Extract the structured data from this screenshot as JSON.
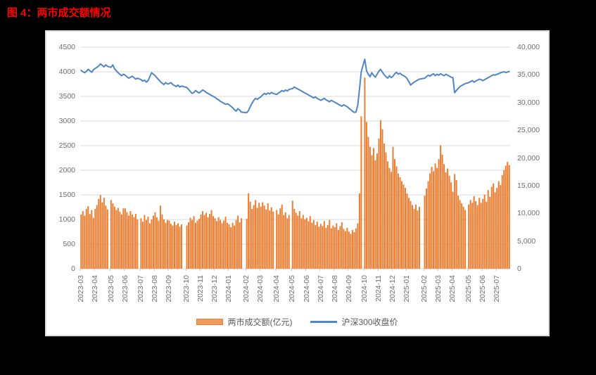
{
  "title": "图 4：两市成交额情况",
  "colors": {
    "title": "#FF0000",
    "bar": "#ED7D31",
    "line": "#4F87C5",
    "grid": "#D9D9D9",
    "axis": "#C6C6C6",
    "tick_text": "#6E6E6E",
    "legend_text": "#595959",
    "page_background": "#000000",
    "panel_background": "#FFFFFF"
  },
  "legend": {
    "turnover_label": "两市成交额(亿元)",
    "csi300_label": "沪深300收盘价"
  },
  "left_axis": {
    "min": 0,
    "max": 4500,
    "step": 500,
    "ticks": [
      "4500",
      "4000",
      "3500",
      "3000",
      "2500",
      "2000",
      "1500",
      "1000",
      "500",
      "0"
    ]
  },
  "right_axis": {
    "min": 0,
    "max": 40000,
    "step": 5000,
    "ticks": [
      "40,000",
      "35,000",
      "30,000",
      "25,000",
      "20,000",
      "15,000",
      "10,000",
      "5,000",
      "0"
    ]
  },
  "chart_data": {
    "type": "combo",
    "title": "图 4：两市成交额情况",
    "grid": true,
    "legend_position": "bottom",
    "series_meta": [
      {
        "name": "两市成交额(亿元)",
        "type": "bar",
        "axis": "right",
        "color": "#ED7D31",
        "axis_range": [
          0,
          40000
        ]
      },
      {
        "name": "沪深300收盘价",
        "type": "line",
        "axis": "left",
        "color": "#4F87C5",
        "axis_range": [
          0,
          4500
        ]
      }
    ],
    "x_tick_labels": [
      "2023-03",
      "2023-04",
      "2023-05",
      "2023-06",
      "2023-07",
      "2023-08",
      "2023-09",
      "2023-10",
      "2023-11",
      "2023-12",
      "2024-01",
      "2024-02",
      "2024-03",
      "2024-04",
      "2024-05",
      "2024-06",
      "2024-07",
      "2024-08",
      "2024-09",
      "2024-10",
      "2024-11",
      "2024-12",
      "2025-01",
      "2025-02",
      "2025-03",
      "2025-04",
      "2025-05",
      "2025-06",
      "2025-07"
    ],
    "months": [
      {
        "label": "2023-03",
        "g": 0,
        "t": [
          9800,
          10400,
          9600,
          10800,
          11300,
          9900,
          10600,
          9200
        ],
        "c": [
          4030,
          4000,
          3980,
          4010,
          4050,
          4020,
          3990,
          4040
        ]
      },
      {
        "label": "2023-04",
        "g": 1,
        "t": [
          10800,
          11500,
          12600,
          13300,
          12000,
          12800,
          11400,
          10700
        ],
        "c": [
          4070,
          4090,
          4120,
          4160,
          4130,
          4100,
          4140,
          4110
        ]
      },
      {
        "label": "2023-05",
        "g": 0,
        "t": [
          12400,
          11800,
          11200,
          10600,
          11000,
          10300,
          9800,
          10900
        ],
        "c": [
          4090,
          4140,
          4060,
          4020,
          3980,
          3950,
          3920,
          3950
        ]
      },
      {
        "label": "2023-06",
        "g": 1,
        "t": [
          10900,
          10200,
          9600,
          10400,
          9800,
          9300,
          9900,
          8900
        ],
        "c": [
          3930,
          3900,
          3870,
          3890,
          3910,
          3880,
          3850,
          3870
        ]
      },
      {
        "label": "2023-07",
        "g": 0,
        "t": [
          9100,
          8500,
          9700,
          8800,
          9400,
          8200,
          8900,
          9600
        ],
        "c": [
          3840,
          3810,
          3830,
          3790,
          3820,
          3900,
          3980,
          3950
        ]
      },
      {
        "label": "2023-08",
        "g": 0,
        "t": [
          10200,
          9300,
          8700,
          11400,
          9800,
          8900,
          8300,
          8800
        ],
        "c": [
          3920,
          3880,
          3840,
          3800,
          3770,
          3740,
          3780,
          3750
        ]
      },
      {
        "label": "2023-09",
        "g": 2,
        "t": [
          8700,
          8100,
          7800,
          8500,
          7900,
          8200,
          7600,
          8000
        ],
        "c": [
          3760,
          3780,
          3740,
          3720,
          3700,
          3730,
          3690,
          3710
        ]
      },
      {
        "label": "2023-10",
        "g": 0,
        "t": [
          7800,
          8400,
          9200,
          8800,
          9500,
          8300,
          8700,
          9000
        ],
        "c": [
          3680,
          3640,
          3600,
          3560,
          3580,
          3620,
          3590,
          3570
        ]
      },
      {
        "label": "2023-11",
        "g": 0,
        "t": [
          9800,
          10400,
          9700,
          10100,
          9300,
          9900,
          10600,
          9500
        ],
        "c": [
          3600,
          3630,
          3610,
          3580,
          3560,
          3540,
          3520,
          3500
        ]
      },
      {
        "label": "2023-12",
        "g": 0,
        "t": [
          9100,
          8600,
          9300,
          8800,
          8200,
          8700,
          9400,
          8300
        ],
        "c": [
          3480,
          3450,
          3430,
          3400,
          3380,
          3360,
          3340,
          3350
        ]
      },
      {
        "label": "2024-01",
        "g": 2,
        "t": [
          8000,
          7500,
          8300,
          7800,
          8800,
          9600,
          8400,
          9100
        ],
        "c": [
          3330,
          3300,
          3270,
          3230,
          3200,
          3250,
          3220,
          3180
        ]
      },
      {
        "label": "2024-02",
        "g": 0,
        "t": [
          9000,
          13600,
          12100,
          10800,
          11500,
          12400,
          11000,
          11900
        ],
        "c": [
          3170,
          3210,
          3290,
          3360,
          3420,
          3460,
          3440,
          3470
        ]
      },
      {
        "label": "2024-03",
        "g": 1,
        "t": [
          11200,
          12000,
          11400,
          10700,
          11800,
          10500,
          11100,
          10300
        ],
        "c": [
          3490,
          3530,
          3560,
          3540,
          3570,
          3550,
          3580,
          3560
        ]
      },
      {
        "label": "2024-04",
        "g": 1,
        "t": [
          10600,
          9800,
          10900,
          11600,
          9700,
          10200,
          9100,
          9700
        ],
        "c": [
          3540,
          3570,
          3590,
          3620,
          3600,
          3630,
          3610,
          3640
        ]
      },
      {
        "label": "2024-05",
        "g": 0,
        "t": [
          12300,
          10800,
          10100,
          9600,
          10400,
          9100,
          9700,
          8900
        ],
        "c": [
          3660,
          3690,
          3670,
          3650,
          3630,
          3610,
          3590,
          3570
        ]
      },
      {
        "label": "2024-06",
        "g": 0,
        "t": [
          9200,
          8600,
          9500,
          8300,
          8800,
          7900,
          8500,
          7600
        ],
        "c": [
          3550,
          3530,
          3510,
          3490,
          3470,
          3490,
          3460,
          3440
        ]
      },
      {
        "label": "2024-07",
        "g": 0,
        "t": [
          8100,
          7700,
          8600,
          7400,
          7900,
          8800,
          7300,
          7800
        ],
        "c": [
          3420,
          3440,
          3460,
          3430,
          3410,
          3390,
          3420,
          3400
        ]
      },
      {
        "label": "2024-08",
        "g": 0,
        "t": [
          7500,
          8200,
          7000,
          7700,
          8400,
          7200,
          6800,
          7400
        ],
        "c": [
          3380,
          3360,
          3340,
          3320,
          3300,
          3330,
          3310,
          3290
        ]
      },
      {
        "label": "2024-09",
        "g": 1,
        "t": [
          6700,
          6300,
          7000,
          6600,
          7300,
          8200,
          13600,
          27500
        ],
        "c": [
          3260,
          3230,
          3200,
          3175,
          3180,
          3320,
          3650,
          4000
        ]
      },
      {
        "label": "2024-10",
        "g": 0,
        "t": [
          34500,
          26500,
          23800,
          22000,
          20500,
          21800,
          19600,
          20800
        ],
        "c": [
          4256,
          4020,
          3950,
          3900,
          3980,
          3930,
          3890,
          3950
        ]
      },
      {
        "label": "2024-11",
        "g": 0,
        "t": [
          23500,
          26800,
          25200,
          22600,
          21000,
          19400,
          18200,
          17500
        ],
        "c": [
          4010,
          4050,
          3990,
          3940,
          3900,
          3870,
          3920,
          3880
        ]
      },
      {
        "label": "2024-12",
        "g": 0,
        "t": [
          22000,
          19800,
          18500,
          17200,
          16500,
          15800,
          15200,
          14600
        ],
        "c": [
          3910,
          3960,
          3990,
          3950,
          3970,
          3940,
          3920,
          3900
        ]
      },
      {
        "label": "2025-01",
        "g": 2,
        "t": [
          13600,
          12800,
          12200,
          11500,
          10800,
          11600,
          10500,
          11200
        ],
        "c": [
          3860,
          3800,
          3730,
          3760,
          3790,
          3810,
          3830,
          3850
        ]
      },
      {
        "label": "2025-02",
        "g": 0,
        "t": [
          13200,
          14500,
          15800,
          17200,
          18400,
          17600,
          19000,
          18200
        ],
        "c": [
          3870,
          3900,
          3930,
          3910,
          3940,
          3960,
          3920,
          3950
        ]
      },
      {
        "label": "2025-03",
        "g": 0,
        "t": [
          19800,
          22300,
          20600,
          18900,
          17400,
          18100,
          16800,
          15600
        ],
        "c": [
          3930,
          3960,
          3940,
          3920,
          3950,
          3930,
          3910,
          3890
        ]
      },
      {
        "label": "2025-04",
        "g": 1,
        "t": [
          13900,
          17100,
          16000,
          13200,
          12400,
          11800,
          11200,
          10600
        ],
        "c": [
          3880,
          3575,
          3620,
          3660,
          3700,
          3720,
          3740,
          3760
        ]
      },
      {
        "label": "2025-05",
        "g": 0,
        "t": [
          11600,
          12400,
          11900,
          13100,
          12200,
          11500,
          12800,
          11900
        ],
        "c": [
          3780,
          3800,
          3820,
          3790,
          3810,
          3830,
          3850,
          3840
        ]
      },
      {
        "label": "2025-06",
        "g": 0,
        "t": [
          12600,
          13400,
          12100,
          14200,
          13000,
          14800,
          15400,
          13800
        ],
        "c": [
          3820,
          3840,
          3860,
          3880,
          3900,
          3920,
          3940,
          3930
        ]
      },
      {
        "label": "2025-07",
        "g": 0,
        "t": [
          14600,
          15800,
          15100,
          16900,
          17800,
          18600,
          19300,
          18700
        ],
        "c": [
          3950,
          3960,
          3980,
          3990,
          4000,
          3985,
          3995,
          4005
        ]
      }
    ]
  }
}
